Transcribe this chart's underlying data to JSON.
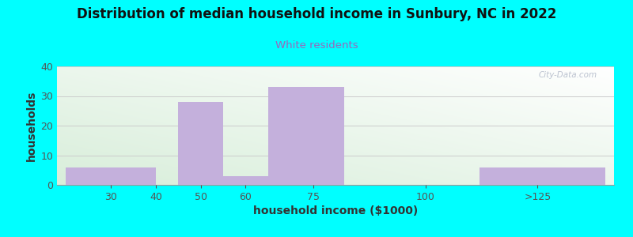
{
  "title": "Distribution of median household income in Sunbury, NC in 2022",
  "subtitle": "White residents",
  "xlabel": "household income ($1000)",
  "ylabel": "households",
  "background_color": "#00FFFF",
  "bar_color": "#C4B0DC",
  "bar_edgecolor": "#C4B0DC",
  "subtitle_color": "#9966BB",
  "title_color": "#111111",
  "watermark": "City-Data.com",
  "ylim": [
    0,
    40
  ],
  "yticks": [
    0,
    10,
    20,
    30,
    40
  ],
  "bar_lefts": [
    20,
    45,
    55,
    65,
    112
  ],
  "bar_rights": [
    40,
    55,
    65,
    82,
    140
  ],
  "bar_heights": [
    6,
    28,
    3,
    33,
    6
  ],
  "xtick_positions": [
    30,
    40,
    50,
    60,
    75,
    100,
    125
  ],
  "xtick_labels": [
    "30",
    "40",
    "50",
    "60",
    "75",
    "100",
    ">125"
  ],
  "xlim": [
    18,
    142
  ]
}
